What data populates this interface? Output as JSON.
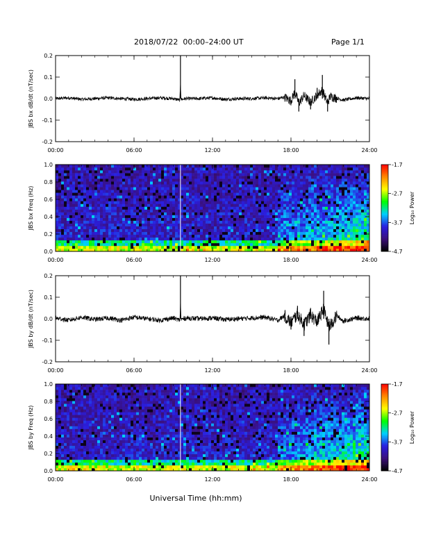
{
  "header": {
    "title": "2018/07/22  00:00–24:00 UT",
    "page": "Page 1/1"
  },
  "xlabel": "Universal Time (hh:mm)",
  "chart_data": [
    {
      "type": "line",
      "ylabel": "JBS bx dB/dt (nT/sec)",
      "xlim": [
        0,
        24
      ],
      "ylim": [
        -0.2,
        0.2
      ],
      "x_tick_labels": [
        "00:00",
        "06:00",
        "12:00",
        "18:00",
        "24:00"
      ],
      "y_tick_labels": [
        "0.2",
        "0.1",
        "0.0",
        "-0.1",
        "-0.2"
      ],
      "series": [
        {
          "x": [
            0,
            1,
            2,
            3,
            4,
            5,
            6,
            7,
            8,
            9,
            9.5,
            9.55,
            9.6,
            10,
            11,
            12,
            13,
            14,
            15,
            16,
            17,
            17.5,
            18,
            18.3,
            18.6,
            19,
            19.5,
            20,
            20.4,
            20.8,
            21,
            22,
            23,
            24
          ],
          "y": [
            0.0,
            0.01,
            -0.01,
            0.0,
            0.01,
            0.0,
            -0.01,
            0.0,
            0.01,
            0.0,
            -0.02,
            0.2,
            -0.01,
            0.0,
            0.0,
            0.01,
            -0.01,
            0.0,
            0.0,
            0.01,
            0.0,
            0.02,
            -0.03,
            0.09,
            -0.06,
            0.04,
            -0.05,
            0.05,
            0.11,
            -0.06,
            0.03,
            -0.02,
            0.01,
            0.0
          ]
        }
      ]
    },
    {
      "type": "heatmap",
      "ylabel": "JBS bx Freq (Hz)",
      "xlim": [
        0,
        24
      ],
      "ylim": [
        0,
        1.0
      ],
      "x_tick_labels": [
        "00:00",
        "06:00",
        "12:00",
        "18:00",
        "24:00"
      ],
      "y_tick_labels": [
        "1.0",
        "0.8",
        "0.6",
        "0.4",
        "0.2",
        "0.0"
      ],
      "colorbar": {
        "label": "Log₁₀ Power",
        "range": [
          -4.7,
          -1.7
        ],
        "tick_labels": [
          "-1.7",
          "-2.7",
          "-3.7",
          "-4.7"
        ]
      }
    },
    {
      "type": "line",
      "ylabel": "JBS by dB/dt (nT/sec)",
      "xlim": [
        0,
        24
      ],
      "ylim": [
        -0.2,
        0.2
      ],
      "x_tick_labels": [
        "00:00",
        "06:00",
        "12:00",
        "18:00",
        "24:00"
      ],
      "y_tick_labels": [
        "0.2",
        "0.1",
        "0.0",
        "-0.1",
        "-0.2"
      ],
      "series": [
        {
          "x": [
            0,
            1,
            2,
            3,
            4,
            5,
            6,
            7,
            8,
            9,
            9.5,
            9.55,
            9.6,
            10,
            11,
            12,
            13,
            14,
            15,
            16,
            17,
            17.5,
            18,
            18.5,
            19,
            19.5,
            20,
            20.5,
            20.9,
            21.5,
            22,
            23,
            24
          ],
          "y": [
            0.01,
            -0.02,
            0.02,
            -0.01,
            0.01,
            -0.02,
            0.02,
            0.0,
            -0.02,
            0.01,
            -0.02,
            0.2,
            -0.01,
            0.01,
            0.0,
            0.01,
            -0.01,
            0.0,
            0.01,
            0.02,
            -0.02,
            0.04,
            -0.05,
            0.06,
            -0.08,
            0.05,
            -0.04,
            0.13,
            -0.12,
            0.04,
            -0.03,
            0.01,
            0.0
          ]
        }
      ]
    },
    {
      "type": "heatmap",
      "ylabel": "JBS by Freq (Hz)",
      "xlim": [
        0,
        24
      ],
      "ylim": [
        0,
        1.0
      ],
      "x_tick_labels": [
        "00:00",
        "06:00",
        "12:00",
        "18:00",
        "24:00"
      ],
      "y_tick_labels": [
        "1.0",
        "0.8",
        "0.6",
        "0.4",
        "0.2",
        "0.0"
      ],
      "colorbar": {
        "label": "Log₁₀ Power",
        "range": [
          -4.7,
          -1.7
        ],
        "tick_labels": [
          "-1.7",
          "-2.7",
          "-3.7",
          "-4.7"
        ]
      }
    }
  ],
  "colors": {
    "line": "#000000",
    "axis": "#000000",
    "marker_line": "#ffffff",
    "colormap": [
      "#000000",
      "#3b0f7a",
      "#2a1ee0",
      "#00d0ff",
      "#00ff00",
      "#ffff00",
      "#ff8800",
      "#ff0000"
    ]
  }
}
